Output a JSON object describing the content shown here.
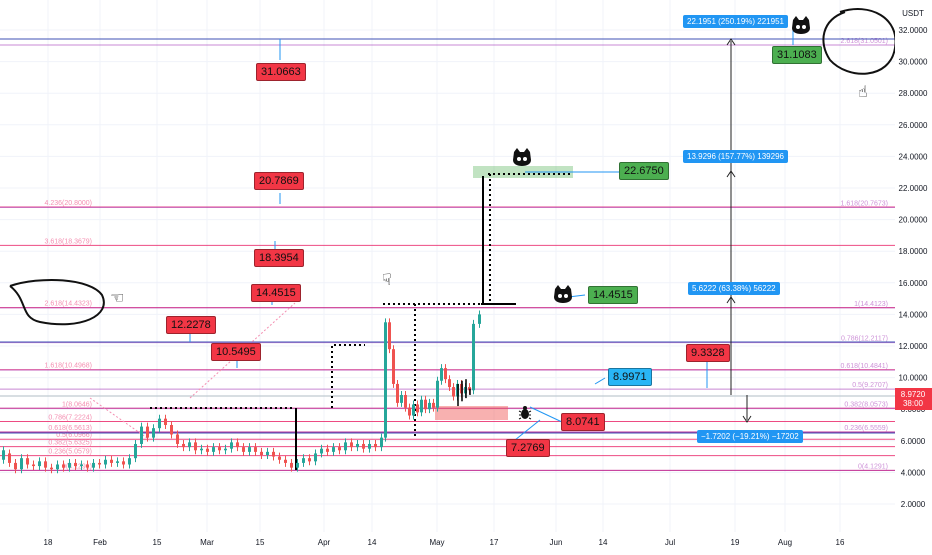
{
  "currency": "USDT",
  "price_axis": {
    "ticks": [
      "32.0000",
      "30.0000",
      "28.0000",
      "26.0000",
      "24.0000",
      "22.0000",
      "20.0000",
      "18.0000",
      "16.0000",
      "14.0000",
      "12.0000",
      "10.0000",
      "8.0000",
      "6.0000",
      "4.0000",
      "2.0000"
    ],
    "last_price": "8.9720",
    "countdown": "38:00"
  },
  "time_axis": [
    "18",
    "Feb",
    "15",
    "Mar",
    "15",
    "Apr",
    "14",
    "May",
    "17",
    "Jun",
    "14",
    "Jul",
    "19",
    "Aug",
    "16"
  ],
  "fib_left": [
    {
      "label": "4.236(20.8000)",
      "price": 20.8,
      "color": "#e91e63"
    },
    {
      "label": "3.618(18.3679)",
      "price": 18.37,
      "color": "#e91e63"
    },
    {
      "label": "2.618(14.4323)",
      "price": 14.43,
      "color": "#e91e63"
    },
    {
      "label": "1.618(10.4968)",
      "price": 10.5,
      "color": "#e91e63"
    },
    {
      "label": "1(8.0646)",
      "price": 8.06,
      "color": "#e91e63"
    },
    {
      "label": "0.786(7.2224)",
      "price": 7.22,
      "color": "#e91e63"
    },
    {
      "label": "0.618(6.5613)",
      "price": 6.56,
      "color": "#e91e63"
    },
    {
      "label": "0.5(6.0966)",
      "price": 6.1,
      "color": "#e91e63"
    },
    {
      "label": "0.382(5.6325)",
      "price": 5.63,
      "color": "#e91e63"
    },
    {
      "label": "0.236(5.0579)",
      "price": 5.06,
      "color": "#e91e63"
    },
    {
      "label": "0(4.1291)",
      "price": 4.13,
      "color": "#e91e63"
    }
  ],
  "fib_right": [
    {
      "label": "2.618(31.0501)",
      "price": 31.05,
      "color": "#9c27b0"
    },
    {
      "label": "1.618(20.7673)",
      "price": 20.77,
      "color": "#9c27b0"
    },
    {
      "label": "1(14.4123)",
      "price": 14.41,
      "color": "#9c27b0"
    },
    {
      "label": "0.786(12.2117)",
      "price": 12.21,
      "color": "#9c27b0"
    },
    {
      "label": "0.618(10.4841)",
      "price": 10.48,
      "color": "#9c27b0"
    },
    {
      "label": "0.5(9.2707)",
      "price": 9.27,
      "color": "#9c27b0"
    },
    {
      "label": "0.382(8.0573)",
      "price": 8.06,
      "color": "#9c27b0"
    },
    {
      "label": "0.236(6.5559)",
      "price": 6.56,
      "color": "#9c27b0"
    },
    {
      "label": "0(4.1291)",
      "price": 4.13,
      "color": "#9c27b0"
    }
  ],
  "price_labels_red": [
    "31.0663",
    "20.7869",
    "18.3954",
    "14.4515",
    "12.2278",
    "10.5495",
    "9.3328",
    "8.0741",
    "7.2769"
  ],
  "price_labels_green": [
    "31.1083",
    "22.6750",
    "14.4515"
  ],
  "price_label_blue": "8.9971",
  "measure_labels": [
    "22.1951 (250.19%) 221951",
    "13.9296 (157.77%) 139296",
    "5.6222 (63.38%) 56222",
    "−1.7202 (−19.21%) −17202"
  ],
  "colors": {
    "bull": "#26a69a",
    "bear": "#ef5350",
    "red_label": "#f23645",
    "green_label": "#4caf50",
    "blue_label": "#2196f3",
    "fib_pink": "#e91e63",
    "fib_purple": "#9c27b0",
    "blue_line": "#3f51b5"
  }
}
